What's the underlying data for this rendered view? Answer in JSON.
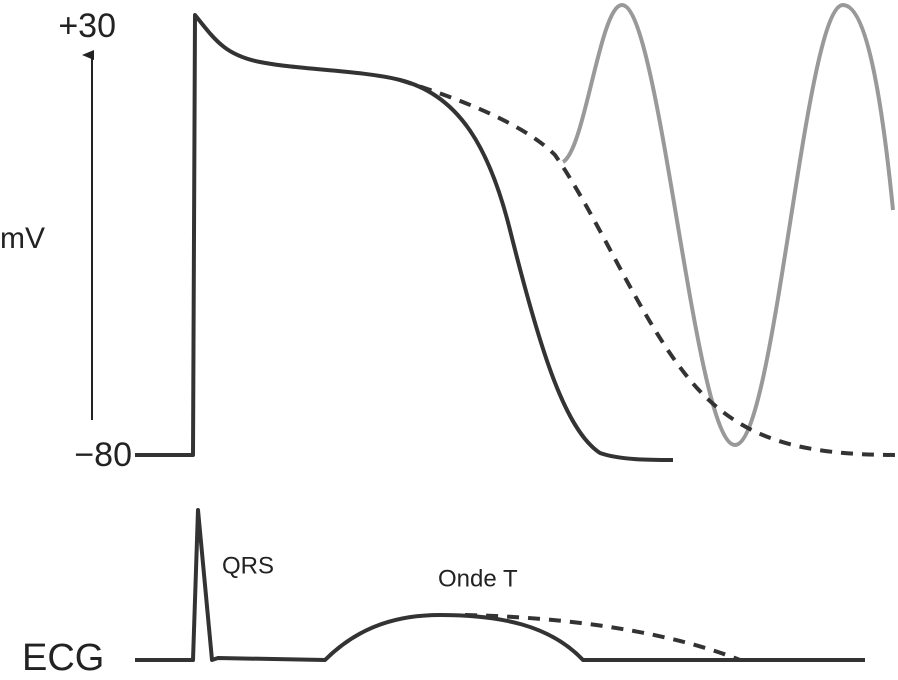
{
  "labels": {
    "top_voltage": "+30",
    "unit": "mV",
    "bottom_voltage": "−80",
    "qrs": "QRS",
    "t_wave": "Onde T",
    "ecg": "ECG"
  }
}
